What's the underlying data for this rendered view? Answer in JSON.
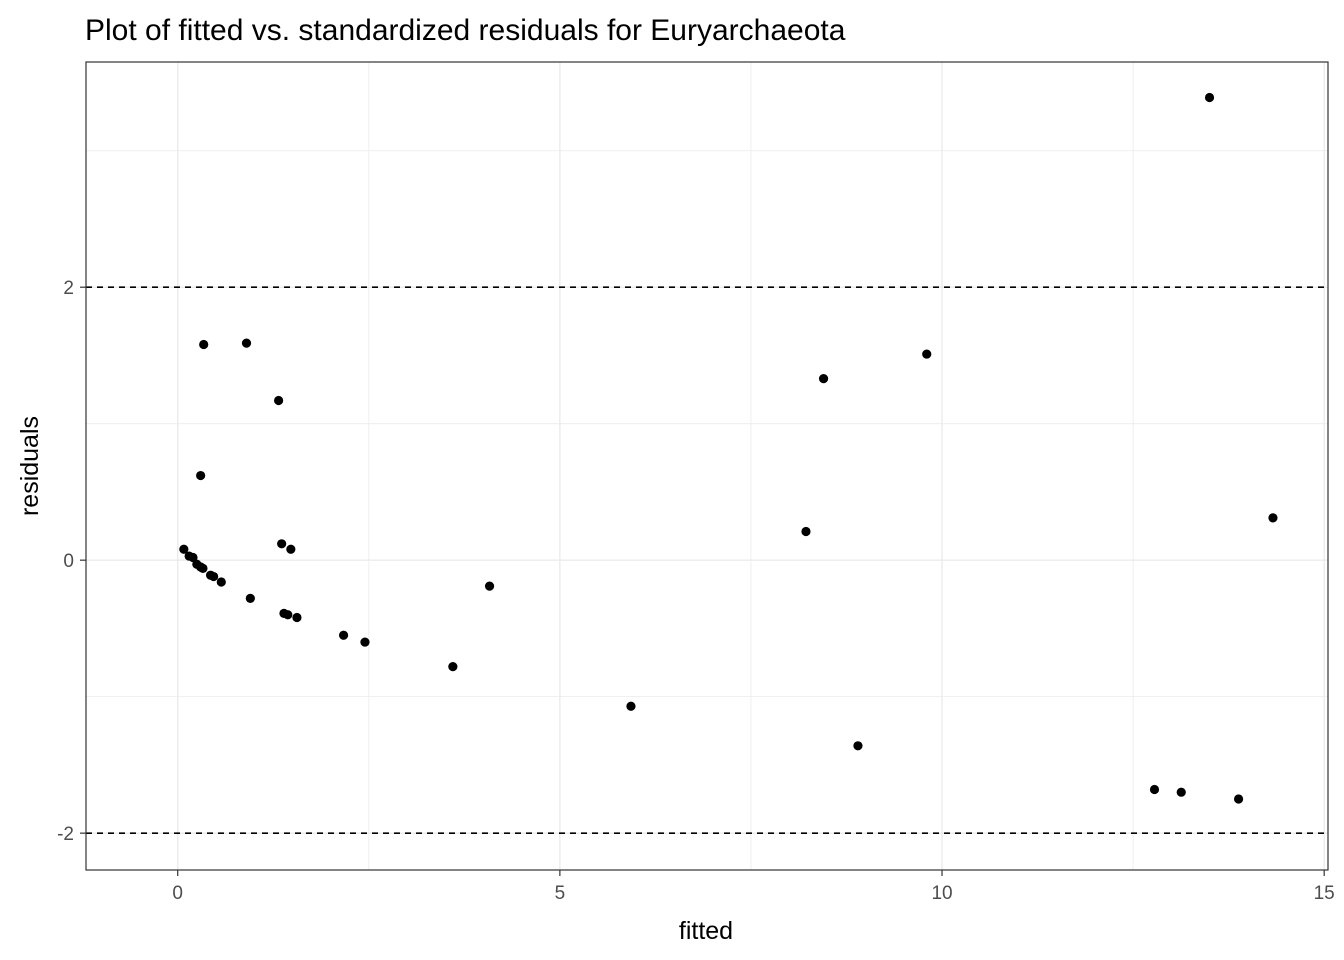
{
  "chart_data": {
    "type": "scatter",
    "title": "Plot of fitted vs. standardized residuals for Euryarchaeota",
    "xlabel": "fitted",
    "ylabel": "residuals",
    "xlim": [
      -1.2,
      15.05
    ],
    "ylim": [
      -2.27,
      3.65
    ],
    "x_ticks": [
      0,
      5,
      10,
      15
    ],
    "y_ticks": [
      -2,
      0,
      2
    ],
    "x_tick_labels": [
      "0",
      "5",
      "10",
      "15"
    ],
    "y_tick_labels": [
      "-2",
      "0",
      "2"
    ],
    "x_minor_ticks": [
      2.5,
      7.5,
      12.5
    ],
    "y_minor_ticks": [
      -1,
      1,
      3
    ],
    "hlines": [
      -2,
      2
    ],
    "grid": true,
    "points": [
      {
        "x": 0.08,
        "y": 0.08
      },
      {
        "x": 0.15,
        "y": 0.03
      },
      {
        "x": 0.2,
        "y": 0.02
      },
      {
        "x": 0.25,
        "y": -0.03
      },
      {
        "x": 0.3,
        "y": -0.05
      },
      {
        "x": 0.33,
        "y": -0.06
      },
      {
        "x": 0.43,
        "y": -0.11
      },
      {
        "x": 0.47,
        "y": -0.12
      },
      {
        "x": 0.57,
        "y": -0.16
      },
      {
        "x": 0.3,
        "y": 0.62
      },
      {
        "x": 0.34,
        "y": 1.58
      },
      {
        "x": 0.9,
        "y": 1.59
      },
      {
        "x": 0.95,
        "y": -0.28
      },
      {
        "x": 1.32,
        "y": 1.17
      },
      {
        "x": 1.36,
        "y": 0.12
      },
      {
        "x": 1.48,
        "y": 0.08
      },
      {
        "x": 1.39,
        "y": -0.39
      },
      {
        "x": 1.44,
        "y": -0.4
      },
      {
        "x": 1.56,
        "y": -0.42
      },
      {
        "x": 2.17,
        "y": -0.55
      },
      {
        "x": 2.45,
        "y": -0.6
      },
      {
        "x": 3.6,
        "y": -0.78
      },
      {
        "x": 4.08,
        "y": -0.19
      },
      {
        "x": 5.93,
        "y": -1.07
      },
      {
        "x": 8.22,
        "y": 0.21
      },
      {
        "x": 8.45,
        "y": 1.33
      },
      {
        "x": 8.9,
        "y": -1.36
      },
      {
        "x": 9.8,
        "y": 1.51
      },
      {
        "x": 12.78,
        "y": -1.68
      },
      {
        "x": 13.13,
        "y": -1.7
      },
      {
        "x": 13.5,
        "y": 3.39
      },
      {
        "x": 13.88,
        "y": -1.75
      },
      {
        "x": 14.33,
        "y": 0.31
      }
    ],
    "point_color": "#000000",
    "grid_color": "#ebebeb",
    "panel_border_color": "#333333"
  }
}
